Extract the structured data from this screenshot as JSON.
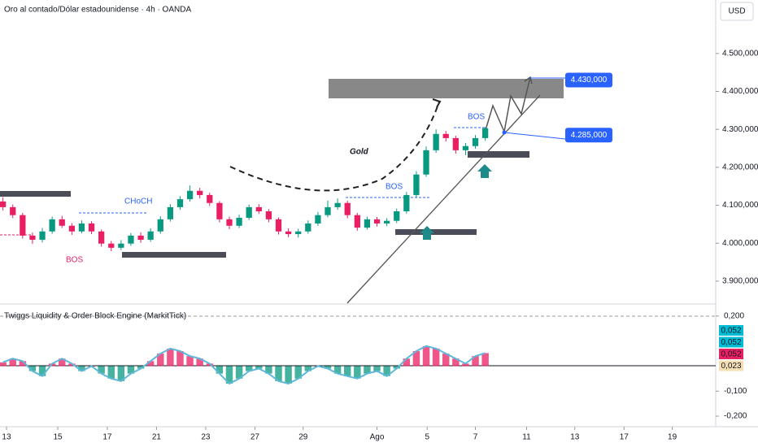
{
  "chart_data": {
    "type": "candlestick",
    "title": "Oro al contado/Dólar estadounidense · 4h · OANDA",
    "currency": "USD",
    "up_color": "#089981",
    "down_color": "#e91e63",
    "open": [
      4110,
      4095,
      4074,
      4020,
      4009,
      4031,
      4063,
      4046,
      4031,
      4052,
      4031,
      3999,
      3988,
      3999,
      4020,
      4009,
      4031,
      4063,
      4095,
      4116,
      4138,
      4127,
      4106,
      4063,
      4046,
      4067,
      4095,
      4084,
      4063,
      4031,
      4024,
      4031,
      4052,
      4074,
      4095,
      4106,
      4074,
      4041,
      4063,
      4052,
      4059,
      4084,
      4127,
      4181,
      4245,
      4288,
      4277,
      4245,
      4256,
      4277
    ],
    "high": [
      4121,
      4102,
      4080,
      4028,
      4040,
      4070,
      4072,
      4053,
      4060,
      4058,
      4036,
      4006,
      4008,
      4027,
      4029,
      4039,
      4071,
      4103,
      4124,
      4152,
      4146,
      4133,
      4111,
      4070,
      4075,
      4102,
      4103,
      4090,
      4068,
      4039,
      4038,
      4060,
      4082,
      4112,
      4118,
      4112,
      4080,
      4070,
      4069,
      4066,
      4091,
      4135,
      4190,
      4255,
      4300,
      4296,
      4283,
      4264,
      4285,
      4306
    ],
    "low": [
      4086,
      4066,
      4012,
      3998,
      4002,
      4025,
      4040,
      4022,
      4026,
      4024,
      3991,
      3979,
      3982,
      3993,
      4001,
      4004,
      4025,
      4057,
      4088,
      4110,
      4118,
      4098,
      4055,
      4037,
      4040,
      4061,
      4077,
      4055,
      4023,
      4016,
      4015,
      4025,
      4046,
      4068,
      4088,
      4066,
      4033,
      4036,
      4044,
      4045,
      4053,
      4078,
      4120,
      4175,
      4238,
      4268,
      4236,
      4232,
      4249,
      4270
    ],
    "close": [
      4095,
      4074,
      4020,
      4009,
      4031,
      4063,
      4046,
      4031,
      4052,
      4031,
      3999,
      3988,
      3999,
      4020,
      4009,
      4031,
      4063,
      4095,
      4116,
      4138,
      4127,
      4106,
      4063,
      4046,
      4067,
      4095,
      4084,
      4063,
      4031,
      4024,
      4031,
      4052,
      4074,
      4095,
      4106,
      4074,
      4041,
      4063,
      4052,
      4059,
      4084,
      4127,
      4181,
      4245,
      4288,
      4277,
      4245,
      4256,
      4277,
      4303
    ],
    "ylim": [
      3842,
      4641
    ],
    "yticks": [
      {
        "value": 4500,
        "label": "4.500,000"
      },
      {
        "value": 4400,
        "label": "4.400,000"
      },
      {
        "value": 4300,
        "label": "4.300,000"
      },
      {
        "value": 4200,
        "label": "4.200,000"
      },
      {
        "value": 4100,
        "label": "4.100,000"
      },
      {
        "value": 4000,
        "label": "4.000,000"
      },
      {
        "value": 3900,
        "label": "3.900,000"
      }
    ],
    "xlim": [
      -0.3,
      72
    ],
    "xticks": [
      {
        "value": 0.36,
        "label": "13"
      },
      {
        "value": 5.57,
        "label": "15"
      },
      {
        "value": 10.6,
        "label": "17"
      },
      {
        "value": 15.6,
        "label": "21"
      },
      {
        "value": 20.6,
        "label": "23"
      },
      {
        "value": 25.6,
        "label": "27"
      },
      {
        "value": 30.5,
        "label": "29"
      },
      {
        "value": 38.0,
        "label": "Ago"
      },
      {
        "value": 43.1,
        "label": "5"
      },
      {
        "value": 48.0,
        "label": "7"
      },
      {
        "value": 53.2,
        "label": "11"
      },
      {
        "value": 58.1,
        "label": "13"
      },
      {
        "value": 63.1,
        "label": "17"
      },
      {
        "value": 68.0,
        "label": "19"
      }
    ],
    "price_labels": [
      {
        "value": 4430,
        "label": "4.430,000"
      },
      {
        "value": 4285,
        "label": "4.285,000"
      }
    ],
    "annotations": {
      "gold": "Gold",
      "choch": "CHoCH",
      "bos": [
        "BOS",
        "BOS",
        "BOS"
      ]
    },
    "indicator": {
      "title": "Twiggs Liquidity & Order Block Engine (MarkitTick)",
      "values": [
        0.015,
        0.03,
        0.02,
        -0.02,
        -0.04,
        0.01,
        0.03,
        0.01,
        -0.02,
        0.0,
        -0.03,
        -0.05,
        -0.06,
        -0.03,
        -0.01,
        0.02,
        0.05,
        0.07,
        0.06,
        0.04,
        0.03,
        0.01,
        -0.03,
        -0.07,
        -0.05,
        -0.02,
        -0.01,
        -0.03,
        -0.06,
        -0.07,
        -0.05,
        -0.02,
        0.0,
        -0.01,
        -0.03,
        -0.04,
        -0.05,
        -0.03,
        -0.02,
        -0.04,
        -0.01,
        0.03,
        0.06,
        0.08,
        0.07,
        0.05,
        0.03,
        0.01,
        0.04,
        0.052
      ],
      "ylim": [
        -0.242,
        0.245
      ],
      "yticks": [
        {
          "value": 0.2,
          "label": "0,200"
        },
        {
          "value": -0.1,
          "label": "-0,100"
        },
        {
          "value": -0.2,
          "label": "-0,200"
        }
      ],
      "last_values": [
        "0,052",
        "0,052",
        "0,052",
        "0,023"
      ]
    }
  }
}
